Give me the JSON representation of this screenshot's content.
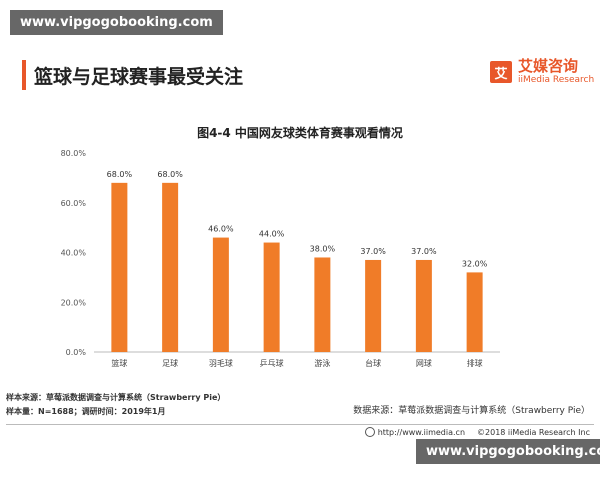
{
  "watermark_top": "www.vipgogobooking.com",
  "watermark_bottom": "www.vipgogobooking.com",
  "header": {
    "title": "篮球与足球赛事最受关注"
  },
  "logo": {
    "mark": "艾",
    "cn": "艾媒咨询",
    "en": "iiMedia Research"
  },
  "chart_data": {
    "type": "bar",
    "title": "图4-4 中国网友球类体育赛事观看情况",
    "categories": [
      "篮球",
      "足球",
      "羽毛球",
      "乒乓球",
      "游泳",
      "台球",
      "网球",
      "排球"
    ],
    "values": [
      68.0,
      68.0,
      46.0,
      44.0,
      38.0,
      37.0,
      37.0,
      32.0
    ],
    "data_labels": [
      "68.0%",
      "68.0%",
      "46.0%",
      "44.0%",
      "38.0%",
      "37.0%",
      "37.0%",
      "32.0%"
    ],
    "yticks": [
      0,
      20,
      40,
      60,
      80
    ],
    "ytick_labels": [
      "0.0%",
      "20.0%",
      "40.0%",
      "60.0%",
      "80.0%"
    ],
    "ylim": [
      0,
      80
    ],
    "grid": false,
    "bar_color": "#f07c28"
  },
  "source_left": {
    "line1": "样本来源：草莓派数据调查与计算系统（Strawberry Pie）",
    "line2": "样本量：N=1688；调研时间：2019年1月"
  },
  "source_right": "数据来源：草莓派数据调查与计算系统（Strawberry Pie）",
  "footer": {
    "url": "http://www.iimedia.cn",
    "copyright": "©2018  iiMedia Research Inc"
  }
}
